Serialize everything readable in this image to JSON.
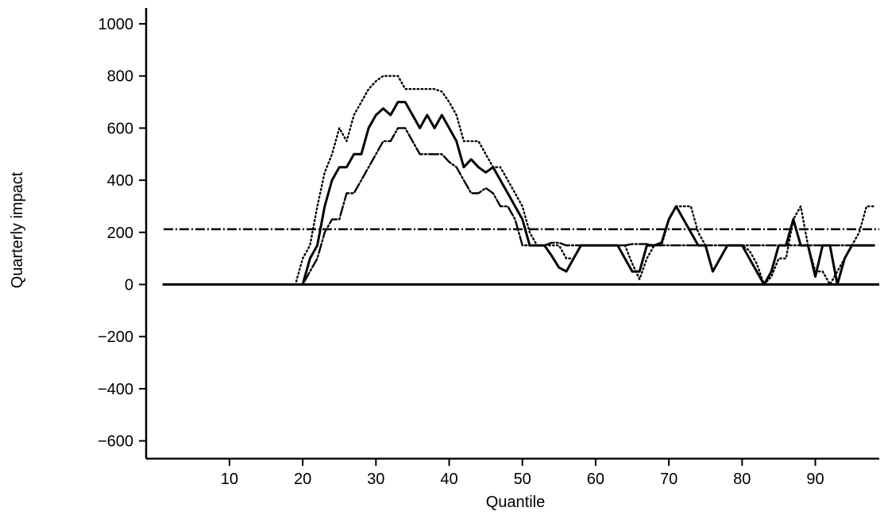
{
  "chart_data": {
    "type": "line",
    "title": "",
    "xlabel": "Quantile",
    "ylabel": "Quarterly impact",
    "xlim": [
      0,
      100
    ],
    "ylim": [
      -700,
      1050
    ],
    "x_ticks": [
      10,
      20,
      30,
      40,
      50,
      60,
      70,
      80,
      90
    ],
    "y_ticks": [
      -600,
      -400,
      -200,
      0,
      200,
      400,
      600,
      800,
      1000
    ],
    "y_tick_labels": [
      "−600",
      "−400",
      "−200",
      "0",
      "200",
      "400",
      "600",
      "800",
      "1000"
    ],
    "grid": false,
    "legend": "none",
    "reference_lines": [
      {
        "style": "solid",
        "y": 0
      },
      {
        "style": "dash-dot",
        "y": 212
      }
    ],
    "series": [
      {
        "style": "solid",
        "x": [
          1,
          19,
          20,
          21,
          22,
          23,
          24,
          25,
          26,
          27,
          28,
          29,
          30,
          31,
          32,
          33,
          34,
          35,
          36,
          37,
          38,
          39,
          40,
          41,
          42,
          43,
          44,
          45,
          46,
          47,
          48,
          49,
          50,
          51,
          52,
          53,
          54,
          55,
          56,
          57,
          58,
          59,
          60,
          61,
          62,
          63,
          64,
          65,
          66,
          67,
          68,
          69,
          70,
          71,
          72,
          73,
          74,
          75,
          76,
          77,
          78,
          79,
          80,
          81,
          82,
          83,
          84,
          85,
          86,
          87,
          88,
          89,
          90,
          91,
          92,
          93,
          94,
          95,
          96,
          97,
          98
        ],
        "y": [
          0,
          0,
          0,
          100,
          150,
          300,
          400,
          450,
          450,
          500,
          500,
          600,
          650,
          675,
          650,
          700,
          700,
          650,
          600,
          650,
          600,
          650,
          600,
          550,
          450,
          480,
          450,
          430,
          450,
          400,
          350,
          300,
          250,
          150,
          150,
          150,
          110,
          65,
          50,
          100,
          150,
          150,
          150,
          150,
          150,
          150,
          100,
          50,
          50,
          150,
          150,
          160,
          250,
          300,
          250,
          200,
          150,
          150,
          50,
          100,
          150,
          150,
          150,
          100,
          50,
          0,
          50,
          150,
          150,
          250,
          150,
          150,
          30,
          150,
          150,
          0,
          100,
          150,
          150,
          150,
          150
        ]
      },
      {
        "style": "dotted",
        "x": [
          1,
          18,
          19,
          20,
          21,
          22,
          23,
          24,
          25,
          26,
          27,
          28,
          29,
          30,
          31,
          32,
          33,
          34,
          35,
          36,
          37,
          38,
          39,
          40,
          41,
          42,
          43,
          44,
          45,
          46,
          47,
          48,
          49,
          50,
          51,
          52,
          53,
          54,
          55,
          56,
          57,
          58,
          59,
          60,
          61,
          62,
          63,
          64,
          65,
          66,
          67,
          68,
          69,
          70,
          71,
          72,
          73,
          74,
          75,
          76,
          77,
          78,
          79,
          80,
          81,
          82,
          83,
          84,
          85,
          86,
          87,
          88,
          89,
          90,
          91,
          92,
          93,
          94,
          95,
          96,
          97,
          98
        ],
        "y": [
          0,
          0,
          0,
          100,
          150,
          300,
          430,
          500,
          600,
          550,
          650,
          700,
          750,
          780,
          800,
          800,
          800,
          750,
          750,
          750,
          750,
          750,
          740,
          700,
          650,
          550,
          550,
          550,
          500,
          450,
          450,
          400,
          350,
          300,
          200,
          150,
          150,
          150,
          150,
          100,
          100,
          150,
          150,
          150,
          150,
          150,
          150,
          150,
          80,
          20,
          100,
          150,
          150,
          250,
          300,
          300,
          300,
          200,
          150,
          50,
          100,
          150,
          150,
          150,
          130,
          80,
          0,
          30,
          100,
          100,
          250,
          300,
          150,
          50,
          50,
          0,
          50,
          100,
          150,
          200,
          300,
          300
        ]
      },
      {
        "style": "dash-dot",
        "x": [
          1,
          20,
          21,
          22,
          23,
          24,
          25,
          26,
          27,
          28,
          29,
          30,
          31,
          32,
          33,
          34,
          35,
          36,
          37,
          38,
          39,
          40,
          41,
          42,
          43,
          44,
          45,
          46,
          47,
          48,
          49,
          50,
          51,
          52,
          53,
          54,
          55,
          56,
          57,
          58,
          59,
          60,
          61,
          62,
          63,
          64,
          65,
          66,
          67,
          68,
          69,
          70,
          71,
          72,
          73,
          74,
          75,
          76,
          77,
          78,
          79,
          80,
          81,
          82,
          83,
          84,
          85,
          86,
          87,
          88,
          89,
          90,
          91,
          92,
          93,
          94,
          95,
          96,
          97,
          98
        ],
        "y": [
          0,
          0,
          50,
          100,
          200,
          250,
          250,
          350,
          350,
          400,
          450,
          500,
          550,
          550,
          600,
          600,
          550,
          500,
          500,
          500,
          500,
          470,
          450,
          400,
          350,
          350,
          370,
          350,
          300,
          300,
          250,
          150,
          150,
          150,
          150,
          160,
          160,
          150,
          150,
          150,
          150,
          150,
          150,
          150,
          150,
          150,
          155,
          155,
          155,
          150,
          150,
          150,
          150,
          150,
          150,
          150,
          150,
          150,
          150,
          150,
          150,
          150,
          150,
          150,
          150,
          150,
          150,
          150,
          150,
          150,
          150,
          150,
          150,
          150,
          150,
          150,
          150,
          150,
          150,
          150
        ]
      }
    ]
  }
}
